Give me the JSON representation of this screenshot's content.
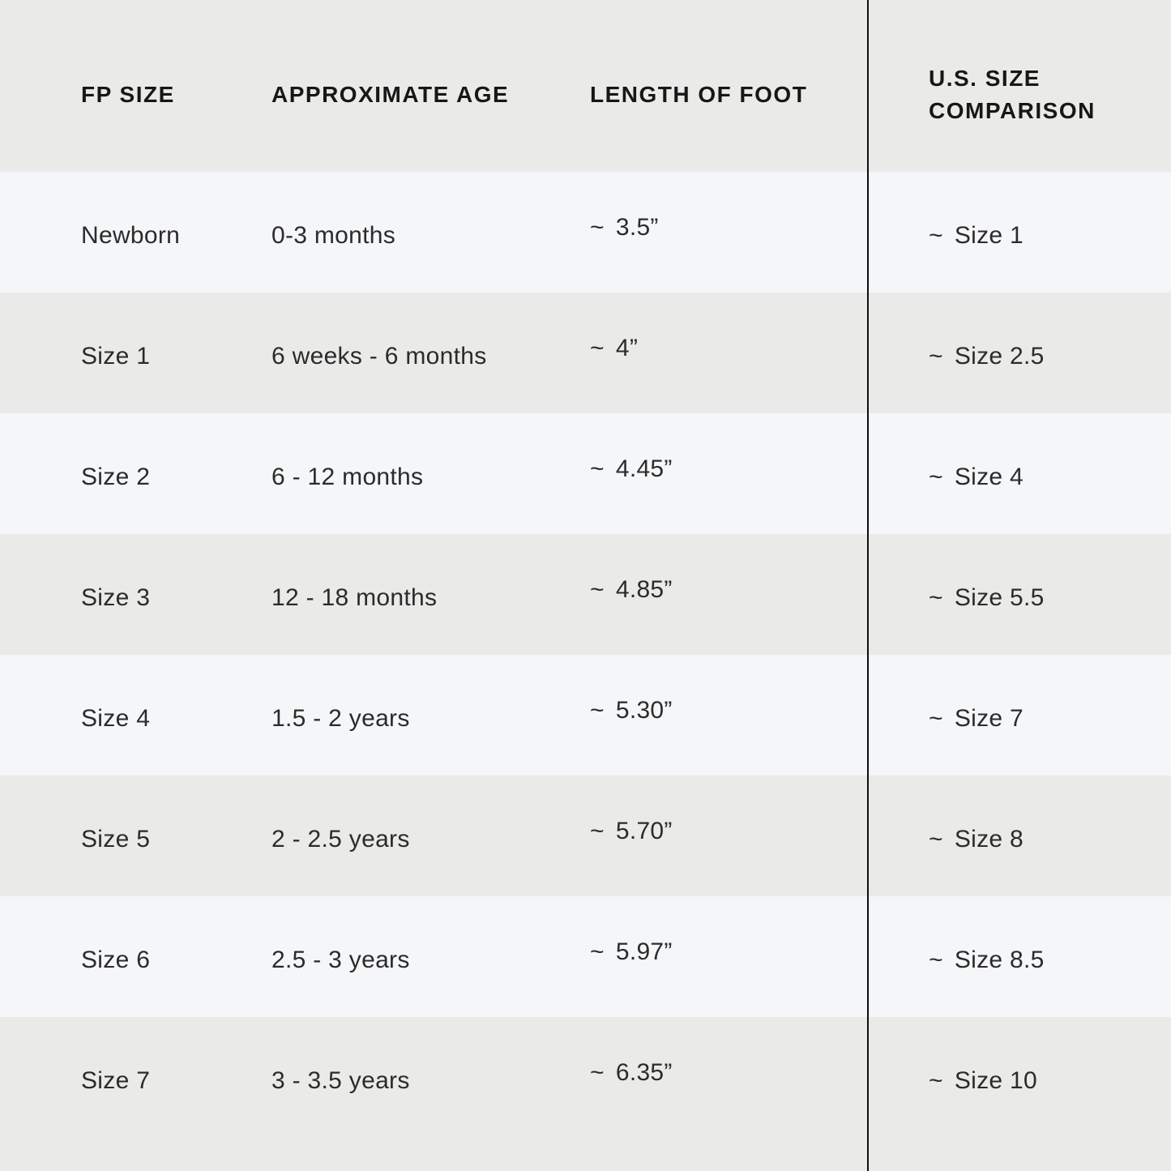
{
  "colors": {
    "row_gray": "#eaeae8",
    "row_light": "#f5f6f8",
    "divider": "#0e0e0e",
    "header_text": "#171717",
    "body_text": "#2b2b2b"
  },
  "table": {
    "approx_symbol": "~",
    "columns": {
      "fp_size": "FP SIZE",
      "age": "APPROXIMATE AGE",
      "length": "LENGTH OF FOOT",
      "us_size": "U.S. SIZE COMPARISON"
    },
    "rows": [
      {
        "fp_size": "Newborn",
        "age": "0-3 months",
        "length": "3.5”",
        "us_size": "Size 1"
      },
      {
        "fp_size": "Size 1",
        "age": "6 weeks - 6 months",
        "length": "4”",
        "us_size": "Size 2.5"
      },
      {
        "fp_size": "Size 2",
        "age": "6 - 12 months",
        "length": "4.45”",
        "us_size": "Size 4"
      },
      {
        "fp_size": "Size 3",
        "age": "12 - 18 months",
        "length": "4.85”",
        "us_size": "Size 5.5"
      },
      {
        "fp_size": "Size 4",
        "age": "1.5 - 2 years",
        "length": "5.30”",
        "us_size": "Size 7"
      },
      {
        "fp_size": "Size 5",
        "age": "2 - 2.5 years",
        "length": "5.70”",
        "us_size": "Size 8"
      },
      {
        "fp_size": "Size 6",
        "age": "2.5 - 3 years",
        "length": "5.97”",
        "us_size": "Size 8.5"
      },
      {
        "fp_size": "Size 7",
        "age": "3 - 3.5 years",
        "length": "6.35”",
        "us_size": "Size 10"
      }
    ]
  }
}
